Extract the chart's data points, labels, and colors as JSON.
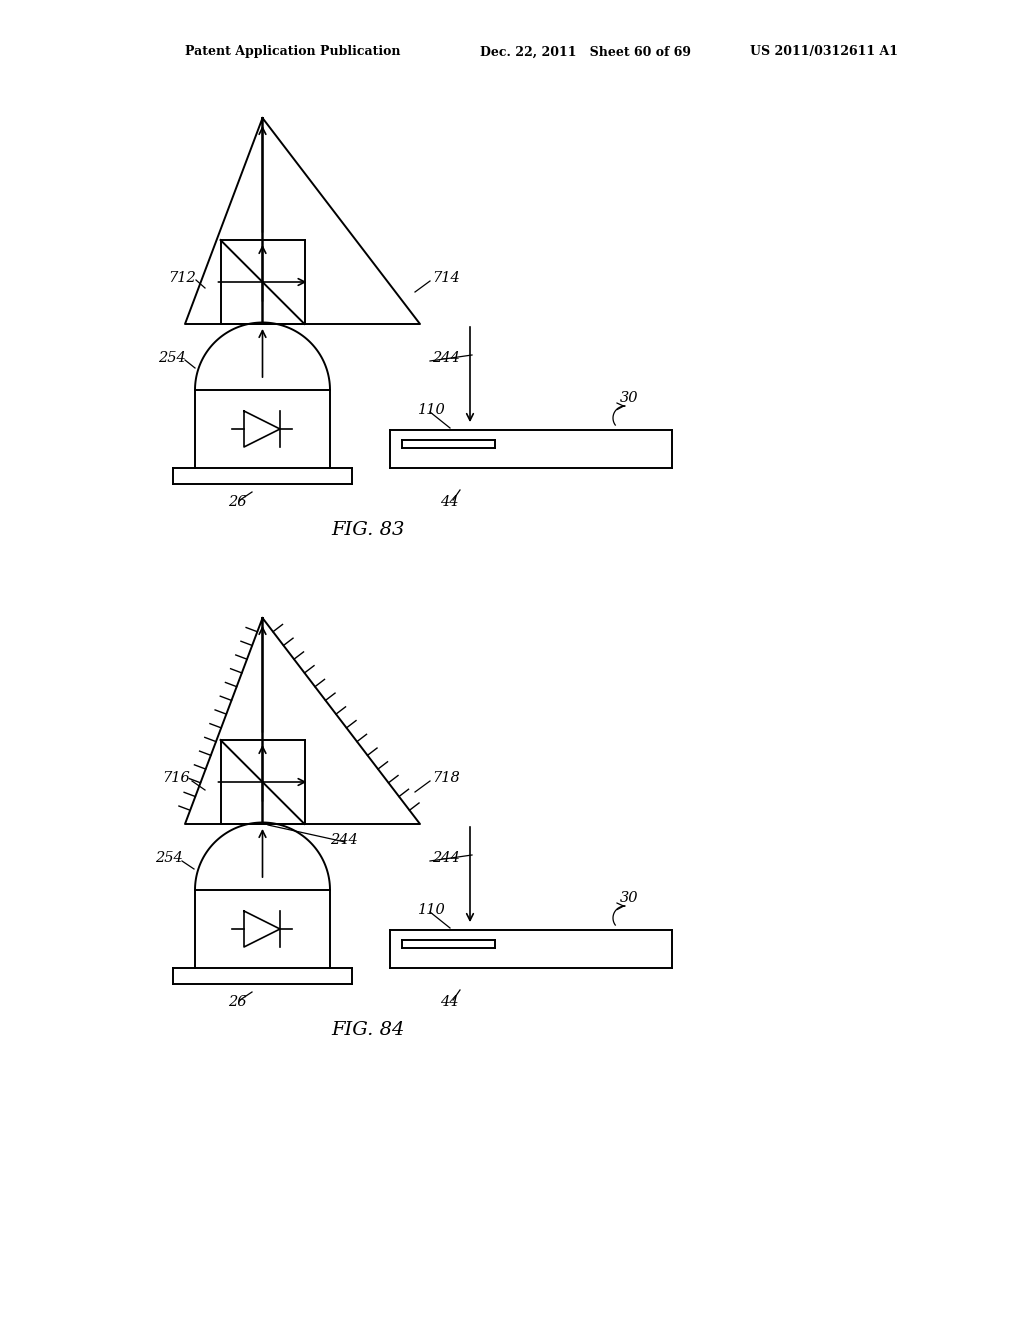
{
  "bg_color": "#ffffff",
  "line_color": "#000000",
  "header_left": "Patent Application Publication",
  "header_mid": "Dec. 22, 2011   Sheet 60 of 69",
  "header_right": "US 2011/0312611 A1",
  "fig83_label": "FIG. 83",
  "fig84_label": "FIG. 84"
}
